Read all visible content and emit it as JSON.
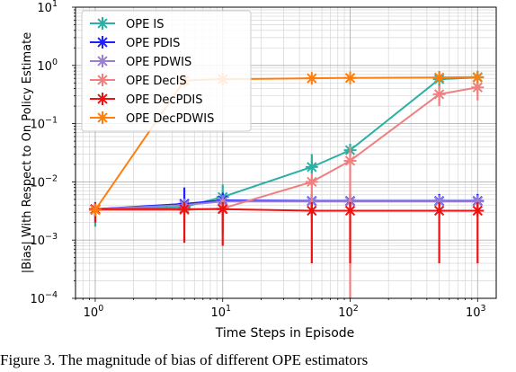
{
  "chart_data": {
    "type": "line",
    "xscale": "log",
    "yscale": "log",
    "xlabel": "Time Steps in Episode",
    "ylabel": "|Bias| With Respect to On Policy Estimate",
    "xlim": [
      0.7,
      1400
    ],
    "ylim": [
      0.0001,
      10
    ],
    "grid": true,
    "legend_position": "top-left",
    "x": [
      1,
      5,
      10,
      50,
      100,
      500,
      1000
    ],
    "x_tick_labels": [
      "10^0",
      "10^1",
      "10^2",
      "10^3"
    ],
    "y_tick_labels": [
      "10^-4",
      "10^-3",
      "10^-2",
      "10^-1",
      "10^0",
      "10^1"
    ],
    "series": [
      {
        "name": "OPE IS",
        "color": "#2ab0a5",
        "values": [
          0.0033,
          0.0037,
          0.0055,
          0.018,
          0.035,
          0.58,
          0.62
        ],
        "err_low": [
          0.0017,
          0.0009,
          0.0013,
          0.014,
          0.027,
          0.4,
          0.4
        ],
        "err_high": [
          0.004,
          0.0055,
          0.009,
          0.03,
          0.045,
          0.8,
          0.8
        ]
      },
      {
        "name": "OPE PDIS",
        "color": "#1f1fff",
        "values": [
          0.0034,
          0.0042,
          0.0048,
          0.0047,
          0.0047,
          0.0047,
          0.0047
        ],
        "err_low": [
          0.0025,
          0.003,
          0.0035,
          0.0035,
          0.0035,
          0.0035,
          0.0035
        ],
        "err_high": [
          0.0045,
          0.008,
          0.0065,
          0.0062,
          0.0062,
          0.0062,
          0.0062
        ]
      },
      {
        "name": "OPE PDWIS",
        "color": "#9a7fd1",
        "values": [
          0.0034,
          0.004,
          0.0046,
          0.0046,
          0.0046,
          0.0046,
          0.0046
        ],
        "err_low": [
          0.0028,
          0.0032,
          0.0038,
          0.0038,
          0.0038,
          0.0038,
          0.0038
        ],
        "err_high": [
          0.004,
          0.005,
          0.0055,
          0.0055,
          0.0055,
          0.0055,
          0.0055
        ]
      },
      {
        "name": "OPE DecIS",
        "color": "#f08080",
        "values": [
          0.0033,
          0.0033,
          0.0035,
          0.01,
          0.023,
          0.32,
          0.42
        ],
        "err_low": [
          0.002,
          0.002,
          0.0015,
          0.002,
          0.0001,
          0.2,
          0.25
        ],
        "err_high": [
          0.004,
          0.0045,
          0.005,
          0.014,
          0.04,
          0.45,
          0.6
        ]
      },
      {
        "name": "OPE DecPDIS",
        "color": "#ee1111",
        "values": [
          0.0034,
          0.0034,
          0.0034,
          0.0032,
          0.0032,
          0.0032,
          0.0032
        ],
        "err_low": [
          0.002,
          0.0009,
          0.0008,
          0.0004,
          0.0004,
          0.0004,
          0.0004
        ],
        "err_high": [
          0.0042,
          0.0045,
          0.0045,
          0.0045,
          0.0045,
          0.0045,
          0.0045
        ]
      },
      {
        "name": "OPE DecPDWIS",
        "color": "#ff7f0e",
        "values": [
          0.0033,
          0.55,
          0.58,
          0.6,
          0.61,
          0.62,
          0.63
        ],
        "err_low": [
          0.0028,
          0.5,
          0.52,
          0.55,
          0.56,
          0.57,
          0.58
        ],
        "err_high": [
          0.004,
          0.6,
          0.63,
          0.65,
          0.66,
          0.67,
          0.68
        ]
      }
    ]
  },
  "caption": "Figure 3. The magnitude of bias of different OPE estimators"
}
